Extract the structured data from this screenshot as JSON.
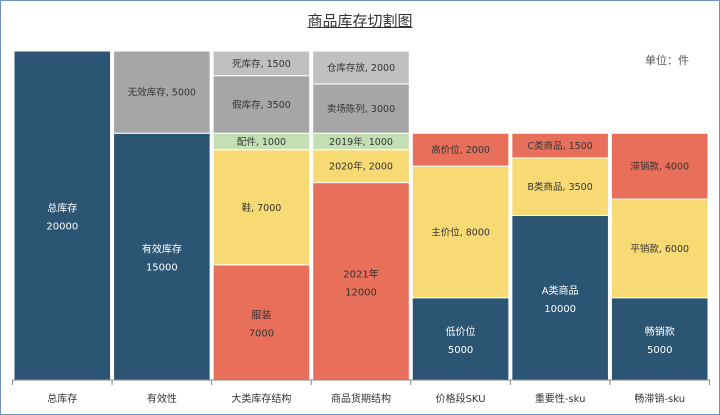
{
  "chart_data": {
    "type": "bar",
    "title": "商品库存切割图",
    "unit_label": "单位：件",
    "ylim": [
      0,
      20000
    ],
    "columns": [
      {
        "category": "总库存",
        "segments": [
          {
            "label": "总库存",
            "value": 20000,
            "value_text": "20000",
            "color": "#2b5573",
            "inline": false
          }
        ]
      },
      {
        "category": "有效性",
        "segments": [
          {
            "label": "有效库存",
            "value": 15000,
            "value_text": "15000",
            "color": "#2b5573",
            "inline": false
          },
          {
            "label": "无效库存",
            "value": 5000,
            "value_text": "5000",
            "color": "#a6a6a6",
            "inline": true
          }
        ]
      },
      {
        "category": "大类库存结构",
        "segments": [
          {
            "label": "服装",
            "value": 7000,
            "value_text": "7000",
            "color": "#e8705a",
            "inline": false
          },
          {
            "label": "鞋",
            "value": 7000,
            "value_text": "7000",
            "color": "#f8da75",
            "inline": true
          },
          {
            "label": "配件",
            "value": 1000,
            "value_text": "1000",
            "color": "#c5dfb4",
            "inline": true
          },
          {
            "label": "假库存",
            "value": 3500,
            "value_text": "3500",
            "color": "#a6a6a6",
            "inline": true
          },
          {
            "label": "死库存",
            "value": 1500,
            "value_text": "1500",
            "color": "#c0c0c0",
            "inline": true
          }
        ]
      },
      {
        "category": "商品货期结构",
        "segments": [
          {
            "label": "2021年",
            "value": 12000,
            "value_text": "12000",
            "color": "#e8705a",
            "inline": false
          },
          {
            "label": "2020年",
            "value": 2000,
            "value_text": "2000",
            "color": "#f8da75",
            "inline": true
          },
          {
            "label": "2019年",
            "value": 1000,
            "value_text": "1000",
            "color": "#c5dfb4",
            "inline": true
          },
          {
            "label": "卖场陈列",
            "value": 3000,
            "value_text": "3000",
            "color": "#a6a6a6",
            "inline": true
          },
          {
            "label": "仓库存放",
            "value": 2000,
            "value_text": "2000",
            "color": "#c0c0c0",
            "inline": true
          }
        ]
      },
      {
        "category": "价格段SKU",
        "segments": [
          {
            "label": "低价位",
            "value": 5000,
            "value_text": "5000",
            "color": "#2b5573",
            "inline": false
          },
          {
            "label": "主价位",
            "value": 8000,
            "value_text": "8000",
            "color": "#f8da75",
            "inline": true
          },
          {
            "label": "高价位",
            "value": 2000,
            "value_text": "2000",
            "color": "#e8705a",
            "inline": true
          }
        ]
      },
      {
        "category": "重要性-sku",
        "segments": [
          {
            "label": "A类商品",
            "value": 10000,
            "value_text": "10000",
            "color": "#2b5573",
            "inline": false
          },
          {
            "label": "B类商品",
            "value": 3500,
            "value_text": "3500",
            "color": "#f8da75",
            "inline": true
          },
          {
            "label": "C类商品",
            "value": 1500,
            "value_text": "1500",
            "color": "#e8705a",
            "inline": true
          }
        ]
      },
      {
        "category": "畅滞销-sku",
        "segments": [
          {
            "label": "畅销款",
            "value": 5000,
            "value_text": "5000",
            "color": "#2b5573",
            "inline": false
          },
          {
            "label": "平销款",
            "value": 6000,
            "value_text": "6000",
            "color": "#f8da75",
            "inline": true
          },
          {
            "label": "滞销款",
            "value": 4000,
            "value_text": "4000",
            "color": "#e8705a",
            "inline": true
          }
        ]
      }
    ]
  }
}
